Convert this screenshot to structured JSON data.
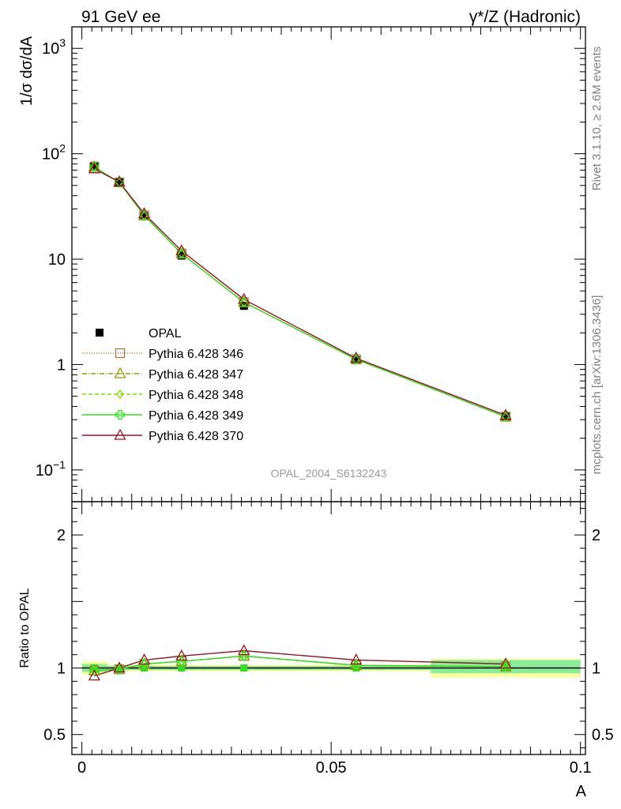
{
  "header": {
    "left": "91 GeV ee",
    "right": "γ*/Z (Hadronic)"
  },
  "side_labels": {
    "rivet": "Rivet 3.1.10, ≥ 2.6M events",
    "mcplots": "mcplots.cern.ch [arXiv:1306.3436]"
  },
  "watermark": "OPAL_2004_S6132243",
  "chart_data": [
    {
      "type": "line",
      "panel": "main",
      "ylabel": "1/σ dσ/dA",
      "yscale": "log",
      "ylim": [
        0.05,
        1600
      ],
      "xlim": [
        -0.002,
        0.101
      ],
      "x_ticks": [
        0,
        0.05,
        0.1
      ],
      "y_ticks": [
        {
          "value": 0.1,
          "label": "10",
          "sup": "−1"
        },
        {
          "value": 1,
          "label": "1",
          "sup": ""
        },
        {
          "value": 10,
          "label": "10",
          "sup": ""
        },
        {
          "value": 100,
          "label": "10",
          "sup": "2"
        },
        {
          "value": 1000,
          "label": "10",
          "sup": "3"
        }
      ],
      "legend_position": "left",
      "x": [
        0.0025,
        0.0075,
        0.0125,
        0.02,
        0.0325,
        0.055,
        0.085
      ],
      "data": {
        "name": "OPAL",
        "y": [
          77,
          54,
          25.5,
          10.8,
          3.6,
          1.1,
          0.32
        ]
      },
      "series": [
        {
          "name": "Pythia 6.428 346",
          "color": "#b07838",
          "marker": "square-open",
          "dash": "1,2",
          "y": [
            75,
            53.5,
            26,
            11.3,
            3.9,
            1.12,
            0.32
          ]
        },
        {
          "name": "Pythia 6.428 347",
          "color": "#8ca000",
          "marker": "triangle-open",
          "dash": "6,2,1,2",
          "y": [
            75,
            53.5,
            26,
            11.3,
            3.9,
            1.12,
            0.32
          ]
        },
        {
          "name": "Pythia 6.428 348",
          "color": "#78e000",
          "marker": "diamond-open",
          "dash": "5,3",
          "y": [
            75,
            53.5,
            26,
            11.3,
            3.9,
            1.12,
            0.32
          ]
        },
        {
          "name": "Pythia 6.428 349",
          "color": "#33dd22",
          "marker": "cross-open",
          "dash": "",
          "y": [
            75,
            53.5,
            26,
            11.3,
            3.9,
            1.12,
            0.32
          ]
        },
        {
          "name": "Pythia 6.428 370",
          "color": "#99152a",
          "marker": "triangle-open",
          "dash": "",
          "y": [
            72,
            54,
            27,
            12,
            4.15,
            1.15,
            0.33
          ]
        }
      ]
    },
    {
      "type": "line",
      "panel": "ratio",
      "ylabel": "Ratio to OPAL",
      "xlabel": "A",
      "ylim": [
        0.35,
        2.25
      ],
      "xlim": [
        -0.002,
        0.101
      ],
      "x_ticks": [
        0,
        0.05,
        0.1
      ],
      "y_ticks": [
        {
          "value": 0.5,
          "label": "0.5"
        },
        {
          "value": 1,
          "label": "1"
        },
        {
          "value": 2,
          "label": "2"
        }
      ],
      "x": [
        0.0025,
        0.0075,
        0.0125,
        0.02,
        0.0325,
        0.055,
        0.085
      ],
      "bins": [
        [
          0,
          0.005
        ],
        [
          0.005,
          0.01
        ],
        [
          0.01,
          0.015
        ],
        [
          0.015,
          0.025
        ],
        [
          0.025,
          0.04
        ],
        [
          0.04,
          0.07
        ],
        [
          0.07,
          0.1
        ]
      ],
      "band_stat": [
        [
          0.97,
          1.03
        ],
        [
          0.985,
          1.015
        ],
        [
          0.985,
          1.015
        ],
        [
          0.985,
          1.015
        ],
        [
          0.985,
          1.015
        ],
        [
          0.985,
          1.015
        ],
        [
          0.96,
          1.06
        ]
      ],
      "band_total": [
        [
          0.95,
          1.05
        ],
        [
          0.975,
          1.025
        ],
        [
          0.975,
          1.025
        ],
        [
          0.975,
          1.025
        ],
        [
          0.975,
          1.025
        ],
        [
          0.975,
          1.025
        ],
        [
          0.93,
          1.07
        ]
      ],
      "series": [
        {
          "name": "Pythia 6.428 346",
          "color": "#b07838",
          "y": [
            0.98,
            0.99,
            1.03,
            1.05,
            1.09,
            1.02,
            1.01
          ]
        },
        {
          "name": "Pythia 6.428 347",
          "color": "#8ca000",
          "y": [
            0.98,
            0.99,
            1.03,
            1.05,
            1.09,
            1.02,
            1.01
          ]
        },
        {
          "name": "Pythia 6.428 348",
          "color": "#78e000",
          "y": [
            0.98,
            0.99,
            1.03,
            1.05,
            1.09,
            1.02,
            1.01
          ]
        },
        {
          "name": "Pythia 6.428 349",
          "color": "#33dd22",
          "y": [
            0.98,
            0.99,
            1.03,
            1.05,
            1.09,
            1.02,
            1.01
          ]
        },
        {
          "name": "Pythia 6.428 370",
          "color": "#99152a",
          "y": [
            0.94,
            1.0,
            1.06,
            1.09,
            1.13,
            1.06,
            1.03
          ]
        }
      ]
    }
  ]
}
